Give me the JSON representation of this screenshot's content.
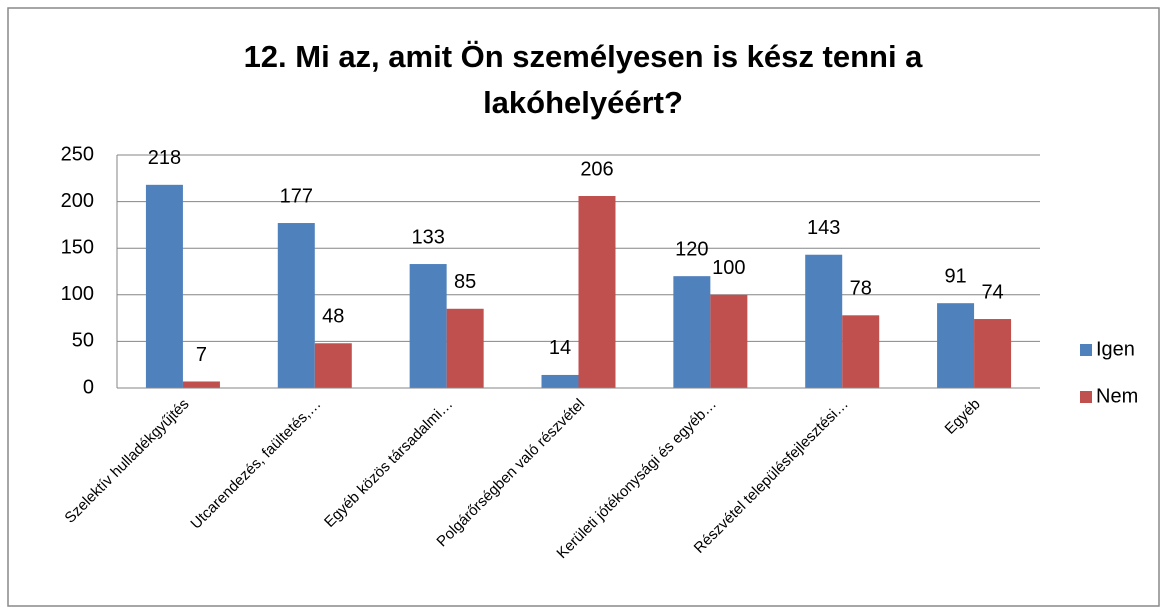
{
  "chart_data": {
    "type": "bar",
    "title": "12. Mi az, amit Ön személyesen is kész tenni a lakóhelyéért?",
    "categories": [
      "Szelektív hulladékgyűjtés",
      "Utcarendezés, faültetés,…",
      "Egyéb közös társadalmi…",
      "Polgárőrségben való részvétel",
      "Kerületi jótékonysági és egyéb…",
      "Részvétel településfejlesztési…",
      "Egyéb"
    ],
    "series": [
      {
        "name": "Igen",
        "color": "#4f81bd",
        "values": [
          218,
          177,
          133,
          14,
          120,
          143,
          91
        ]
      },
      {
        "name": "Nem",
        "color": "#c0504d",
        "values": [
          7,
          48,
          85,
          206,
          100,
          78,
          74
        ]
      }
    ],
    "ylim": [
      0,
      250
    ],
    "yticks": [
      0,
      50,
      100,
      150,
      200,
      250
    ],
    "grid": true,
    "legend": "right"
  }
}
